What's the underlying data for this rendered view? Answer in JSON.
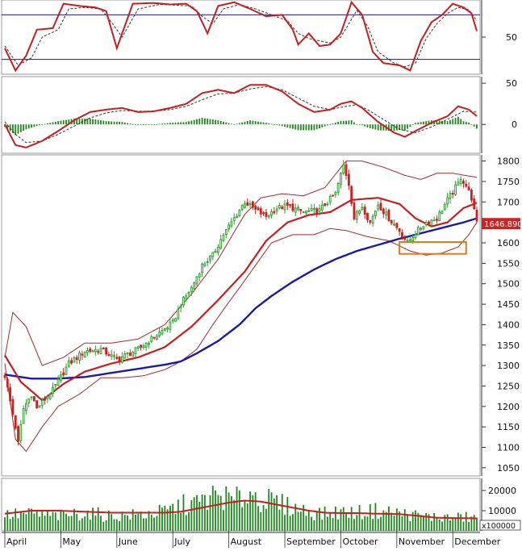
{
  "chart_data": {
    "type": "candlestick",
    "months": [
      "April",
      "May",
      "June",
      "July",
      "August",
      "September",
      "October",
      "November",
      "December"
    ],
    "month_day_index": [
      0,
      21,
      42,
      63,
      84,
      105,
      126,
      147,
      168
    ],
    "price_axis": {
      "ticks": [
        1050,
        1100,
        1150,
        1200,
        1250,
        1300,
        1350,
        1400,
        1450,
        1500,
        1550,
        1600,
        1650,
        1700,
        1750,
        1800
      ],
      "ylim": [
        1030,
        1815
      ]
    },
    "last_price_label": "1646.890",
    "ohlc_days": 178,
    "price_anchors": [
      [
        0,
        1275
      ],
      [
        4,
        1150
      ],
      [
        5,
        1110
      ],
      [
        7,
        1195
      ],
      [
        10,
        1230
      ],
      [
        12,
        1195
      ],
      [
        18,
        1240
      ],
      [
        24,
        1305
      ],
      [
        30,
        1335
      ],
      [
        36,
        1340
      ],
      [
        42,
        1315
      ],
      [
        50,
        1340
      ],
      [
        58,
        1380
      ],
      [
        63,
        1405
      ],
      [
        66,
        1450
      ],
      [
        70,
        1490
      ],
      [
        74,
        1545
      ],
      [
        78,
        1570
      ],
      [
        82,
        1620
      ],
      [
        86,
        1660
      ],
      [
        90,
        1700
      ],
      [
        94,
        1680
      ],
      [
        98,
        1665
      ],
      [
        102,
        1685
      ],
      [
        106,
        1690
      ],
      [
        112,
        1675
      ],
      [
        118,
        1680
      ],
      [
        124,
        1720
      ],
      [
        127,
        1790
      ],
      [
        129,
        1745
      ],
      [
        131,
        1660
      ],
      [
        134,
        1690
      ],
      [
        137,
        1650
      ],
      [
        140,
        1695
      ],
      [
        144,
        1660
      ],
      [
        148,
        1630
      ],
      [
        151,
        1600
      ],
      [
        154,
        1625
      ],
      [
        158,
        1650
      ],
      [
        162,
        1660
      ],
      [
        166,
        1705
      ],
      [
        170,
        1745
      ],
      [
        171,
        1760
      ],
      [
        173,
        1740
      ],
      [
        175,
        1710
      ],
      [
        177,
        1647
      ]
    ],
    "bands": {
      "mid_anchors": [
        [
          0,
          1325
        ],
        [
          6,
          1260
        ],
        [
          14,
          1215
        ],
        [
          22,
          1255
        ],
        [
          30,
          1285
        ],
        [
          40,
          1305
        ],
        [
          50,
          1320
        ],
        [
          60,
          1345
        ],
        [
          70,
          1395
        ],
        [
          80,
          1460
        ],
        [
          90,
          1530
        ],
        [
          98,
          1605
        ],
        [
          106,
          1650
        ],
        [
          114,
          1668
        ],
        [
          122,
          1675
        ],
        [
          130,
          1705
        ],
        [
          140,
          1710
        ],
        [
          148,
          1695
        ],
        [
          154,
          1660
        ],
        [
          160,
          1640
        ],
        [
          166,
          1650
        ],
        [
          172,
          1685
        ],
        [
          177,
          1698
        ]
      ],
      "upper_anchors": [
        [
          0,
          1320
        ],
        [
          3,
          1430
        ],
        [
          8,
          1395
        ],
        [
          14,
          1300
        ],
        [
          22,
          1320
        ],
        [
          30,
          1355
        ],
        [
          40,
          1355
        ],
        [
          50,
          1365
        ],
        [
          60,
          1400
        ],
        [
          70,
          1475
        ],
        [
          80,
          1560
        ],
        [
          90,
          1670
        ],
        [
          96,
          1710
        ],
        [
          104,
          1720
        ],
        [
          112,
          1715
        ],
        [
          120,
          1735
        ],
        [
          128,
          1800
        ],
        [
          134,
          1800
        ],
        [
          142,
          1785
        ],
        [
          150,
          1765
        ],
        [
          156,
          1755
        ],
        [
          162,
          1770
        ],
        [
          168,
          1770
        ],
        [
          177,
          1760
        ]
      ],
      "lower_anchors": [
        [
          0,
          1305
        ],
        [
          4,
          1120
        ],
        [
          8,
          1090
        ],
        [
          14,
          1150
        ],
        [
          20,
          1200
        ],
        [
          28,
          1230
        ],
        [
          36,
          1270
        ],
        [
          44,
          1270
        ],
        [
          52,
          1275
        ],
        [
          60,
          1290
        ],
        [
          66,
          1310
        ],
        [
          72,
          1340
        ],
        [
          78,
          1400
        ],
        [
          84,
          1455
        ],
        [
          88,
          1490
        ],
        [
          94,
          1545
        ],
        [
          100,
          1600
        ],
        [
          108,
          1620
        ],
        [
          116,
          1620
        ],
        [
          122,
          1635
        ],
        [
          128,
          1630
        ],
        [
          136,
          1615
        ],
        [
          144,
          1605
        ],
        [
          152,
          1580
        ],
        [
          158,
          1570
        ],
        [
          164,
          1575
        ],
        [
          170,
          1590
        ],
        [
          174,
          1620
        ],
        [
          177,
          1650
        ]
      ]
    },
    "long_ma_anchors": [
      [
        0,
        1278
      ],
      [
        10,
        1268
      ],
      [
        20,
        1268
      ],
      [
        30,
        1272
      ],
      [
        40,
        1282
      ],
      [
        50,
        1292
      ],
      [
        60,
        1302
      ],
      [
        66,
        1310
      ],
      [
        72,
        1330
      ],
      [
        80,
        1360
      ],
      [
        88,
        1400
      ],
      [
        94,
        1440
      ],
      [
        100,
        1470
      ],
      [
        108,
        1505
      ],
      [
        116,
        1535
      ],
      [
        124,
        1560
      ],
      [
        132,
        1580
      ],
      [
        140,
        1595
      ],
      [
        148,
        1610
      ],
      [
        154,
        1620
      ],
      [
        160,
        1630
      ],
      [
        166,
        1640
      ],
      [
        172,
        1650
      ],
      [
        177,
        1660
      ]
    ],
    "stochastic": {
      "ticks": [
        50
      ],
      "levels": [
        80,
        20
      ],
      "ylim": [
        0,
        100
      ],
      "k_anchors": [
        [
          0,
          35
        ],
        [
          4,
          5
        ],
        [
          8,
          25
        ],
        [
          12,
          60
        ],
        [
          18,
          62
        ],
        [
          22,
          95
        ],
        [
          28,
          92
        ],
        [
          34,
          90
        ],
        [
          38,
          85
        ],
        [
          42,
          35
        ],
        [
          48,
          95
        ],
        [
          56,
          96
        ],
        [
          62,
          94
        ],
        [
          68,
          95
        ],
        [
          72,
          85
        ],
        [
          76,
          55
        ],
        [
          80,
          92
        ],
        [
          86,
          97
        ],
        [
          92,
          88
        ],
        [
          98,
          78
        ],
        [
          104,
          80
        ],
        [
          108,
          60
        ],
        [
          110,
          40
        ],
        [
          114,
          55
        ],
        [
          118,
          38
        ],
        [
          122,
          40
        ],
        [
          126,
          55
        ],
        [
          130,
          97
        ],
        [
          134,
          80
        ],
        [
          138,
          30
        ],
        [
          142,
          15
        ],
        [
          148,
          12
        ],
        [
          152,
          5
        ],
        [
          156,
          45
        ],
        [
          160,
          70
        ],
        [
          164,
          80
        ],
        [
          168,
          95
        ],
        [
          172,
          90
        ],
        [
          175,
          82
        ],
        [
          177,
          58
        ]
      ],
      "d_anchors": [
        [
          0,
          38
        ],
        [
          5,
          12
        ],
        [
          10,
          22
        ],
        [
          14,
          50
        ],
        [
          20,
          60
        ],
        [
          24,
          88
        ],
        [
          30,
          90
        ],
        [
          36,
          88
        ],
        [
          40,
          70
        ],
        [
          44,
          50
        ],
        [
          50,
          88
        ],
        [
          58,
          94
        ],
        [
          64,
          93
        ],
        [
          70,
          92
        ],
        [
          74,
          78
        ],
        [
          78,
          68
        ],
        [
          82,
          88
        ],
        [
          88,
          94
        ],
        [
          94,
          88
        ],
        [
          100,
          80
        ],
        [
          106,
          72
        ],
        [
          110,
          55
        ],
        [
          114,
          48
        ],
        [
          118,
          45
        ],
        [
          122,
          42
        ],
        [
          126,
          50
        ],
        [
          132,
          86
        ],
        [
          136,
          65
        ],
        [
          140,
          30
        ],
        [
          146,
          15
        ],
        [
          150,
          10
        ],
        [
          154,
          15
        ],
        [
          158,
          48
        ],
        [
          162,
          68
        ],
        [
          166,
          82
        ],
        [
          170,
          90
        ],
        [
          174,
          87
        ],
        [
          177,
          72
        ]
      ]
    },
    "macd": {
      "ticks": [
        50,
        0
      ],
      "ylim": [
        -35,
        58
      ],
      "macd_anchors": [
        [
          0,
          0
        ],
        [
          4,
          -25
        ],
        [
          8,
          -28
        ],
        [
          14,
          -20
        ],
        [
          20,
          -8
        ],
        [
          26,
          5
        ],
        [
          32,
          15
        ],
        [
          38,
          18
        ],
        [
          44,
          20
        ],
        [
          50,
          15
        ],
        [
          56,
          16
        ],
        [
          62,
          20
        ],
        [
          68,
          25
        ],
        [
          74,
          38
        ],
        [
          80,
          42
        ],
        [
          86,
          38
        ],
        [
          92,
          48
        ],
        [
          98,
          48
        ],
        [
          104,
          40
        ],
        [
          110,
          25
        ],
        [
          116,
          15
        ],
        [
          122,
          18
        ],
        [
          126,
          25
        ],
        [
          130,
          28
        ],
        [
          134,
          20
        ],
        [
          140,
          3
        ],
        [
          146,
          -10
        ],
        [
          150,
          -15
        ],
        [
          154,
          -8
        ],
        [
          160,
          2
        ],
        [
          166,
          10
        ],
        [
          170,
          22
        ],
        [
          174,
          18
        ],
        [
          177,
          10
        ]
      ],
      "signal_anchors": [
        [
          0,
          3
        ],
        [
          4,
          -12
        ],
        [
          8,
          -22
        ],
        [
          14,
          -20
        ],
        [
          20,
          -12
        ],
        [
          26,
          -2
        ],
        [
          32,
          8
        ],
        [
          38,
          14
        ],
        [
          44,
          17
        ],
        [
          50,
          16
        ],
        [
          56,
          16
        ],
        [
          62,
          18
        ],
        [
          68,
          22
        ],
        [
          74,
          30
        ],
        [
          80,
          37
        ],
        [
          86,
          38
        ],
        [
          92,
          43
        ],
        [
          98,
          46
        ],
        [
          104,
          42
        ],
        [
          110,
          32
        ],
        [
          116,
          22
        ],
        [
          122,
          18
        ],
        [
          128,
          22
        ],
        [
          132,
          24
        ],
        [
          136,
          18
        ],
        [
          142,
          6
        ],
        [
          148,
          -6
        ],
        [
          154,
          -10
        ],
        [
          160,
          -3
        ],
        [
          166,
          6
        ],
        [
          172,
          16
        ],
        [
          177,
          15
        ]
      ]
    },
    "volume": {
      "ticks": [
        20000,
        10000
      ],
      "multiplier_label": "x100000",
      "ylim": [
        0,
        26000
      ],
      "vol_anchors": [
        [
          0,
          7500
        ],
        [
          10,
          8000
        ],
        [
          20,
          7000
        ],
        [
          30,
          8500
        ],
        [
          40,
          7000
        ],
        [
          50,
          7500
        ],
        [
          60,
          9000
        ],
        [
          66,
          12000
        ],
        [
          72,
          13000
        ],
        [
          76,
          15000
        ],
        [
          80,
          17000
        ],
        [
          86,
          14000
        ],
        [
          92,
          18000
        ],
        [
          96,
          15000
        ],
        [
          102,
          13000
        ],
        [
          108,
          11000
        ],
        [
          114,
          9000
        ],
        [
          120,
          8000
        ],
        [
          126,
          9000
        ],
        [
          132,
          8500
        ],
        [
          138,
          9500
        ],
        [
          144,
          9000
        ],
        [
          150,
          8000
        ],
        [
          156,
          7000
        ],
        [
          162,
          6500
        ],
        [
          168,
          6000
        ],
        [
          172,
          6500
        ],
        [
          177,
          6000
        ]
      ],
      "ma_anchors": [
        [
          0,
          8500
        ],
        [
          10,
          10000
        ],
        [
          20,
          10000
        ],
        [
          30,
          9500
        ],
        [
          40,
          9000
        ],
        [
          50,
          9000
        ],
        [
          60,
          9000
        ],
        [
          66,
          9500
        ],
        [
          72,
          11000
        ],
        [
          78,
          12500
        ],
        [
          84,
          14000
        ],
        [
          90,
          15000
        ],
        [
          96,
          14500
        ],
        [
          102,
          13000
        ],
        [
          108,
          11500
        ],
        [
          114,
          10000
        ],
        [
          120,
          9000
        ],
        [
          126,
          8800
        ],
        [
          132,
          8800
        ],
        [
          140,
          8500
        ],
        [
          148,
          8300
        ],
        [
          156,
          7300
        ],
        [
          162,
          6500
        ],
        [
          170,
          6300
        ],
        [
          177,
          6200
        ]
      ]
    }
  }
}
